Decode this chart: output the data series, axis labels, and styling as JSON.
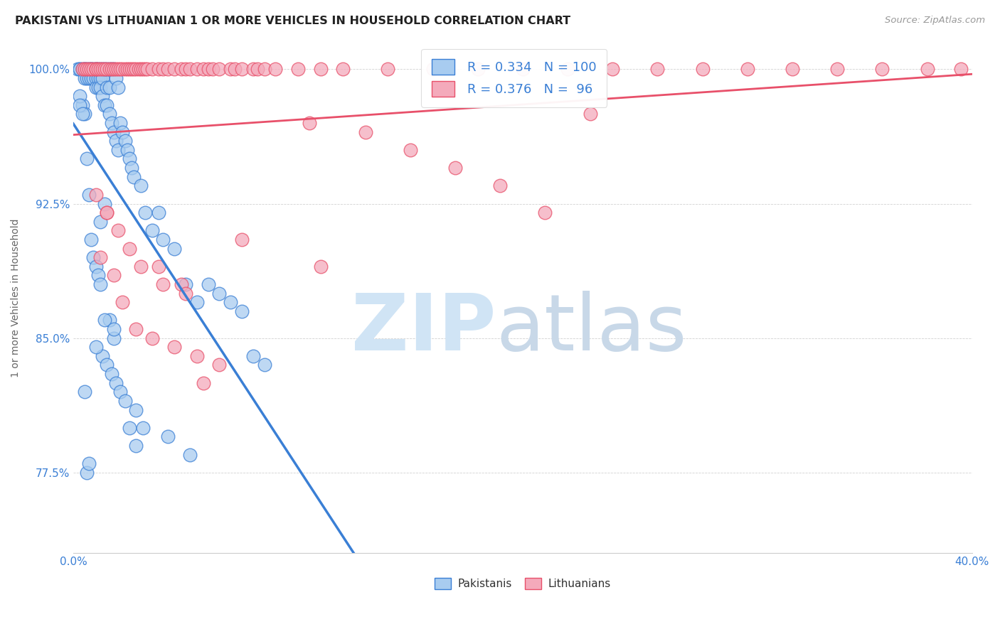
{
  "title": "PAKISTANI VS LITHUANIAN 1 OR MORE VEHICLES IN HOUSEHOLD CORRELATION CHART",
  "source": "Source: ZipAtlas.com",
  "ylabel": "1 or more Vehicles in Household",
  "yticks": [
    77.5,
    85.0,
    92.5,
    100.0
  ],
  "xlim": [
    0.0,
    40.0
  ],
  "ylim": [
    73.0,
    101.5
  ],
  "pakistani_R": 0.334,
  "pakistani_N": 100,
  "lithuanian_R": 0.376,
  "lithuanian_N": 96,
  "pakistani_color": "#A8CCF0",
  "lithuanian_color": "#F4AABB",
  "pakistani_line_color": "#3A7FD5",
  "lithuanian_line_color": "#E8506A",
  "tick_color": "#3A7FD5",
  "background_color": "#ffffff",
  "watermark_zip": "ZIP",
  "watermark_atlas": "atlas",
  "watermark_color": "#D0E4F5",
  "pakistani_scatter_x": [
    0.2,
    0.3,
    0.3,
    0.4,
    0.5,
    0.5,
    0.5,
    0.6,
    0.6,
    0.7,
    0.7,
    0.8,
    0.8,
    0.8,
    0.9,
    0.9,
    1.0,
    1.0,
    1.0,
    1.0,
    1.1,
    1.1,
    1.1,
    1.2,
    1.2,
    1.2,
    1.3,
    1.3,
    1.3,
    1.4,
    1.4,
    1.5,
    1.5,
    1.5,
    1.6,
    1.6,
    1.6,
    1.7,
    1.7,
    1.8,
    1.8,
    1.9,
    1.9,
    2.0,
    2.0,
    2.1,
    2.2,
    2.3,
    2.4,
    2.5,
    2.6,
    2.7,
    2.8,
    3.0,
    3.2,
    3.5,
    3.8,
    4.0,
    4.5,
    5.0,
    5.5,
    6.0,
    6.5,
    7.0,
    7.5,
    8.0,
    8.5,
    0.4,
    0.5,
    0.6,
    0.7,
    0.8,
    0.9,
    1.0,
    1.1,
    1.2,
    1.3,
    1.5,
    1.7,
    1.9,
    2.1,
    2.3,
    2.5,
    2.8,
    3.1,
    4.2,
    5.2,
    1.4,
    1.6,
    1.8,
    0.3,
    0.3,
    0.4,
    0.5,
    0.6,
    0.7,
    1.0,
    1.2,
    1.4,
    1.8
  ],
  "pakistani_scatter_y": [
    100.0,
    100.0,
    100.0,
    100.0,
    100.0,
    100.0,
    99.5,
    100.0,
    99.5,
    100.0,
    99.5,
    100.0,
    100.0,
    99.5,
    100.0,
    99.5,
    100.0,
    100.0,
    99.5,
    99.0,
    100.0,
    99.5,
    99.0,
    100.0,
    99.5,
    99.0,
    100.0,
    99.5,
    98.5,
    100.0,
    98.0,
    100.0,
    99.0,
    98.0,
    100.0,
    99.0,
    97.5,
    100.0,
    97.0,
    100.0,
    96.5,
    99.5,
    96.0,
    99.0,
    95.5,
    97.0,
    96.5,
    96.0,
    95.5,
    95.0,
    94.5,
    94.0,
    81.0,
    93.5,
    92.0,
    91.0,
    92.0,
    90.5,
    90.0,
    88.0,
    87.0,
    88.0,
    87.5,
    87.0,
    86.5,
    84.0,
    83.5,
    98.0,
    97.5,
    95.0,
    93.0,
    90.5,
    89.5,
    89.0,
    88.5,
    88.0,
    84.0,
    83.5,
    83.0,
    82.5,
    82.0,
    81.5,
    80.0,
    79.0,
    80.0,
    79.5,
    78.5,
    92.5,
    86.0,
    85.0,
    98.5,
    98.0,
    97.5,
    82.0,
    77.5,
    78.0,
    84.5,
    91.5,
    86.0,
    85.5
  ],
  "lithuanian_scatter_x": [
    0.4,
    0.5,
    0.6,
    0.7,
    0.8,
    0.9,
    1.0,
    1.0,
    1.1,
    1.2,
    1.3,
    1.4,
    1.5,
    1.6,
    1.7,
    1.8,
    1.9,
    2.0,
    2.1,
    2.2,
    2.3,
    2.4,
    2.5,
    2.6,
    2.7,
    2.8,
    2.9,
    3.0,
    3.1,
    3.2,
    3.3,
    3.5,
    3.8,
    4.0,
    4.2,
    4.5,
    4.8,
    5.0,
    5.2,
    5.5,
    5.8,
    6.0,
    6.2,
    6.5,
    7.0,
    7.2,
    7.5,
    8.0,
    8.2,
    8.5,
    9.0,
    10.0,
    10.5,
    11.0,
    12.0,
    13.0,
    14.0,
    15.0,
    16.0,
    17.0,
    18.0,
    19.0,
    20.0,
    21.0,
    22.0,
    23.0,
    24.0,
    26.0,
    28.0,
    30.0,
    32.0,
    34.0,
    36.0,
    38.0,
    39.5,
    1.2,
    1.5,
    1.8,
    2.2,
    2.8,
    3.5,
    4.5,
    5.5,
    6.5,
    7.5,
    11.0,
    3.8,
    4.8,
    5.8,
    1.0,
    1.5,
    2.0,
    2.5,
    3.0,
    4.0,
    5.0
  ],
  "lithuanian_scatter_y": [
    100.0,
    100.0,
    100.0,
    100.0,
    100.0,
    100.0,
    100.0,
    100.0,
    100.0,
    100.0,
    100.0,
    100.0,
    100.0,
    100.0,
    100.0,
    100.0,
    100.0,
    100.0,
    100.0,
    100.0,
    100.0,
    100.0,
    100.0,
    100.0,
    100.0,
    100.0,
    100.0,
    100.0,
    100.0,
    100.0,
    100.0,
    100.0,
    100.0,
    100.0,
    100.0,
    100.0,
    100.0,
    100.0,
    100.0,
    100.0,
    100.0,
    100.0,
    100.0,
    100.0,
    100.0,
    100.0,
    100.0,
    100.0,
    100.0,
    100.0,
    100.0,
    100.0,
    97.0,
    100.0,
    100.0,
    96.5,
    100.0,
    95.5,
    100.0,
    94.5,
    100.0,
    93.5,
    100.0,
    92.0,
    100.0,
    97.5,
    100.0,
    100.0,
    100.0,
    100.0,
    100.0,
    100.0,
    100.0,
    100.0,
    100.0,
    89.5,
    92.0,
    88.5,
    87.0,
    85.5,
    85.0,
    84.5,
    84.0,
    83.5,
    90.5,
    89.0,
    89.0,
    88.0,
    82.5,
    93.0,
    92.0,
    91.0,
    90.0,
    89.0,
    88.0,
    87.5
  ]
}
